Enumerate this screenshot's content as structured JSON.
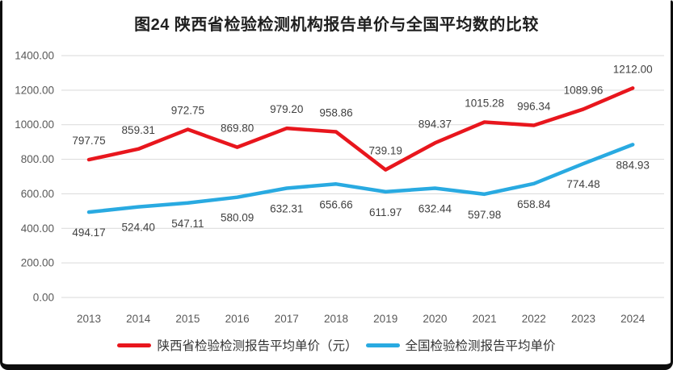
{
  "title": "图24 陕西省检验检测机构报告单价与全国平均数的比较",
  "chart_data": {
    "type": "line",
    "title": "图24 陕西省检验检测机构报告单价与全国平均数的比较",
    "categories": [
      "2013",
      "2014",
      "2015",
      "2016",
      "2017",
      "2018",
      "2019",
      "2020",
      "2021",
      "2022",
      "2023",
      "2024"
    ],
    "series": [
      {
        "name": "陕西省检验检测报告平均单价（元）",
        "color": "#e8161d",
        "label_position": "above",
        "values": [
          797.75,
          859.31,
          972.75,
          869.8,
          979.2,
          958.86,
          739.19,
          894.37,
          1015.28,
          996.34,
          1089.96,
          1212.0
        ]
      },
      {
        "name": "全国检验检测报告平均单价",
        "color": "#29aae1",
        "label_position": "below",
        "values": [
          494.17,
          524.4,
          547.11,
          580.09,
          632.31,
          656.66,
          611.97,
          632.44,
          597.98,
          658.84,
          774.48,
          884.93
        ]
      }
    ],
    "xlabel": "",
    "ylabel": "",
    "ylim": [
      0,
      1400
    ],
    "y_tick_step": 200,
    "y_tick_labels": [
      "0.00",
      "200.00",
      "400.00",
      "600.00",
      "800.00",
      "1000.00",
      "1200.00",
      "1400.00"
    ],
    "grid": "horizontal-only",
    "legend_position": "bottom",
    "data_labels_shown": true
  },
  "colors": {
    "gridline": "#d9d9d9",
    "tick_text": "#595959",
    "data_label": "#404040",
    "legend_text": "#333333",
    "frame": "#0d0d0d",
    "background": "#ffffff"
  }
}
